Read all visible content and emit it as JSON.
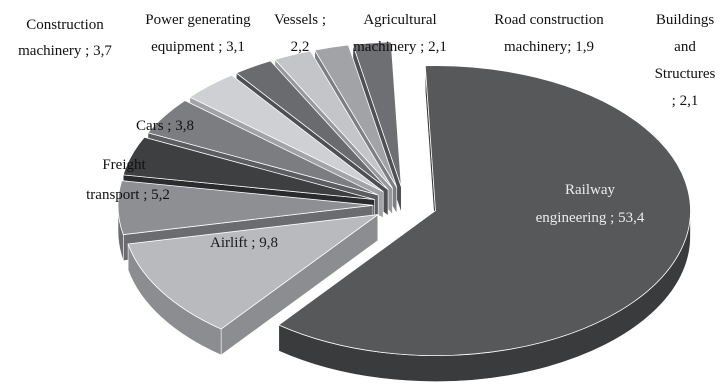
{
  "chart_data": {
    "type": "pie",
    "three_d": true,
    "exploded": true,
    "slices": [
      {
        "label": "Railway engineering ; 53,4",
        "category": "Railway engineering",
        "value": 53.4,
        "color": "#57585a",
        "side": "#3a3b3d"
      },
      {
        "label": "Airlift ; 9,8",
        "category": "Airlift",
        "value": 9.8,
        "color": "#b9babd",
        "side": "#8c8d90"
      },
      {
        "label": "Freight transport ; 5,2",
        "category": "Freight transport",
        "value": 5.2,
        "color": "#8e8f92",
        "side": "#6b6c6f"
      },
      {
        "label": "Cars ; 3,8",
        "category": "Cars",
        "value": 3.8,
        "color": "#3e3f41",
        "side": "#2a2b2d"
      },
      {
        "label": "Construction machinery ; 3,7",
        "category": "Construction machinery",
        "value": 3.7,
        "color": "#7c7d80",
        "side": "#5c5d60"
      },
      {
        "label": "Power generating equipment ; 3,1",
        "category": "Power generating equipment",
        "value": 3.1,
        "color": "#cfd0d3",
        "side": "#a2a3a6"
      },
      {
        "label": "Vessels ; 2,2",
        "category": "Vessels",
        "value": 2.2,
        "color": "#6a6b6e",
        "side": "#4e4f52"
      },
      {
        "label": "Agricultural machinery ; 2,1",
        "category": "Agricultural machinery",
        "value": 2.1,
        "color": "#c4c5c8",
        "side": "#97989b"
      },
      {
        "label": "Road construction machinery; 1,9",
        "category": "Road construction machinery",
        "value": 1.9,
        "color": "#a2a3a6",
        "side": "#7d7e81"
      },
      {
        "label": "Buildings and Structures ; 2,1",
        "category": "Buildings and Structures",
        "value": 2.1,
        "color": "#6e6f72",
        "side": "#4f5053"
      }
    ],
    "title": "",
    "legend": "none"
  }
}
